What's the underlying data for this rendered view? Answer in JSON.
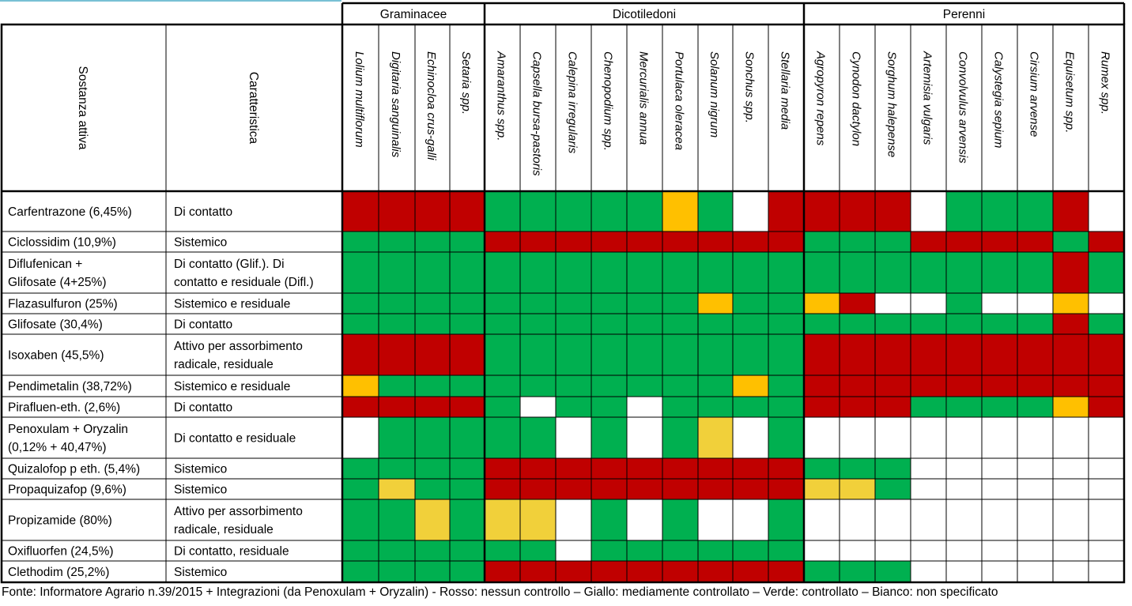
{
  "table": {
    "groups": [
      "Graminacee",
      "Dicotiledoni",
      "Perenni"
    ],
    "column_headers": {
      "sostanza": "Sostanza attiva",
      "caratteristica": "Caratteristica"
    },
    "species": [
      "Lolium multiflorum",
      "Digitaria sanguinalis",
      "Echinocloa crus-galli",
      "Setaria spp.",
      "Amaranthus spp.",
      "Capsella bursa-pastoris",
      "Calepina irregularis",
      "Chenopodium spp.",
      "Mercurialis annua",
      "Portulaca oleracea",
      "Solanum nigrum",
      "Sonchus spp.",
      "Stellaria media",
      "Agropyron repens",
      "Cynodon dactylon",
      "Sorghum halepense",
      "Artemisia vulgaris",
      "Convolvulus arvensis",
      "Calystegia sepium",
      "Cirsium arvense",
      "Equisetum spp.",
      "Rumex spp."
    ],
    "rows": [
      {
        "sostanza": [
          "Carfentrazone (6,45%)"
        ],
        "caratteristica": [
          "Di contatto"
        ],
        "cells": "RRRRGGGGGYGWRRRRWGGGRW"
      },
      {
        "sostanza": [
          "Ciclossidim (10,9%)"
        ],
        "caratteristica": [
          "Sistemico"
        ],
        "cells": "GGGGRRRRRRRRRGGGRRRRGR"
      },
      {
        "sostanza": [
          "Diflufenican +",
          "Glifosate (4+25%)"
        ],
        "caratteristica": [
          "Di contatto (Glif.). Di",
          "contatto e residuale (Difl.)"
        ],
        "cells": "GGGGGGGGGGGGGGGGGGGGRG"
      },
      {
        "sostanza": [
          "Flazasulfuron (25%)"
        ],
        "caratteristica": [
          "Sistemico e residuale"
        ],
        "cells": "GGGGGGGGGGYGGYRWWGWWYW"
      },
      {
        "sostanza": [
          "Glifosate (30,4%)"
        ],
        "caratteristica": [
          "Di contatto"
        ],
        "cells": "GGGGGGGGGGGGGGGGGGGGRG"
      },
      {
        "sostanza": [
          "Isoxaben (45,5%)"
        ],
        "caratteristica": [
          "Attivo per assorbimento",
          "radicale, residuale"
        ],
        "cells": "RRRRGGGGGGGGGRRRRRRRRR"
      },
      {
        "sostanza": [
          "Pendimetalin (38,72%)"
        ],
        "caratteristica": [
          "Sistemico e residuale"
        ],
        "cells": "YGGGGGGGGGGYGRRRRRRRRR"
      },
      {
        "sostanza": [
          "Pirafluen-eth. (2,6%)"
        ],
        "caratteristica": [
          "Di contatto"
        ],
        "cells": "RRRRGWGGWGGGGRRRGGGGYR"
      },
      {
        "sostanza": [
          "Penoxulam + Oryzalin",
          "(0,12% + 40,47%)"
        ],
        "caratteristica": [
          "Di contatto e residuale"
        ],
        "cells": "WGGGGGWGWGLWGWWWWWWWWW"
      },
      {
        "sostanza": [
          "Quizalofop p eth. (5,4%)"
        ],
        "caratteristica": [
          "Sistemico"
        ],
        "cells": "GGGGRRRRRRRRRGGGWWWWWW"
      },
      {
        "sostanza": [
          "Propaquizafop (9,6%)"
        ],
        "caratteristica": [
          "Sistemico"
        ],
        "cells": "GLGGRRRRRRRRRLLGWWWWWW"
      },
      {
        "sostanza": [
          "Propizamide (80%)"
        ],
        "caratteristica": [
          "Attivo per assorbimento",
          "radicale, residuale"
        ],
        "cells": "GGLGLLWGWGWWGWWWWWWWWW"
      },
      {
        "sostanza": [
          "Oxifluorfen (24,5%)"
        ],
        "caratteristica": [
          "Di contatto, residuale"
        ],
        "cells": "GGGGGGWGGGGGGWWWWWWWWW"
      },
      {
        "sostanza": [
          "Clethodim (25,2%)"
        ],
        "caratteristica": [
          "Sistemico"
        ],
        "cells": "GGGGRRRRRRRRRGGGWWWWWW"
      }
    ],
    "colors": {
      "R": "#c00000",
      "G": "#00b050",
      "Y": "#ffc000",
      "L": "#f1d03a",
      "W": "#ffffff"
    },
    "teal_accent": "#4bacc6"
  },
  "footer": "Fonte: Informatore Agrario n.39/2015 + Integrazioni (da Penoxulam + Oryzalin) -  Rosso: nessun controllo – Giallo: mediamente controllato – Verde: controllato – Bianco: non specificato"
}
